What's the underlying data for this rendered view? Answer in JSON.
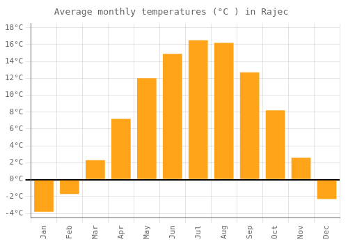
{
  "chart_data": {
    "type": "bar",
    "title": "Average monthly temperatures (°C ) in Rajec",
    "categories": [
      "Jan",
      "Feb",
      "Mar",
      "Apr",
      "May",
      "Jun",
      "Jul",
      "Aug",
      "Sep",
      "Oct",
      "Nov",
      "Dec"
    ],
    "values": [
      -3.8,
      -1.7,
      2.3,
      7.2,
      12.0,
      14.9,
      16.5,
      16.2,
      12.7,
      8.2,
      2.6,
      -2.3
    ],
    "color": "#FFA319",
    "ylim": [
      -4.5,
      18.5
    ],
    "yticks": [
      {
        "value": -4,
        "label": "-4°C"
      },
      {
        "value": -2,
        "label": "-2°C"
      },
      {
        "value": 0,
        "label": "0°C"
      },
      {
        "value": 2,
        "label": "2°C"
      },
      {
        "value": 4,
        "label": "4°C"
      },
      {
        "value": 6,
        "label": "6°C"
      },
      {
        "value": 8,
        "label": "8°C"
      },
      {
        "value": 10,
        "label": "10°C"
      },
      {
        "value": 12,
        "label": "12°C"
      },
      {
        "value": 14,
        "label": "14°C"
      },
      {
        "value": 16,
        "label": "16°C"
      },
      {
        "value": 18,
        "label": "18°C"
      }
    ],
    "grid": true
  }
}
